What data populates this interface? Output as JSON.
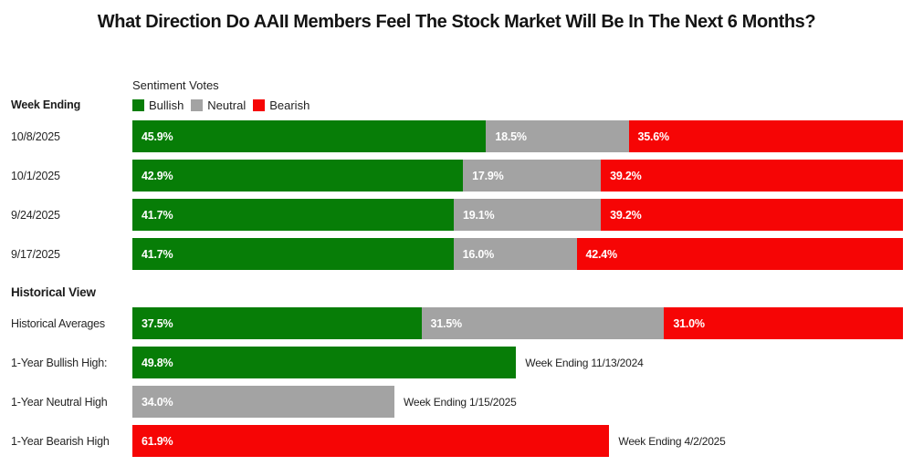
{
  "title": "What Direction Do AAII Members Feel The Stock Market Will Be In The Next 6 Months?",
  "section_labels": {
    "week_ending": "Week Ending",
    "historical_view": "Historical View"
  },
  "legend": {
    "title": "Sentiment Votes",
    "items": [
      {
        "label": "Bullish",
        "color": "#077d07"
      },
      {
        "label": "Neutral",
        "color": "#a3a3a3"
      },
      {
        "label": "Bearish",
        "color": "#f60505"
      }
    ]
  },
  "colors": {
    "bullish": "#077d07",
    "neutral": "#a3a3a3",
    "bearish": "#f60505"
  },
  "rows": [
    {
      "date": "10/8/2025",
      "segments": [
        {
          "kind": "bullish",
          "pct": 45.9,
          "label": "45.9%"
        },
        {
          "kind": "neutral",
          "pct": 18.5,
          "label": "18.5%"
        },
        {
          "kind": "bearish",
          "pct": 35.6,
          "label": "35.6%"
        }
      ]
    },
    {
      "date": "10/1/2025",
      "segments": [
        {
          "kind": "bullish",
          "pct": 42.9,
          "label": "42.9%"
        },
        {
          "kind": "neutral",
          "pct": 17.9,
          "label": "17.9%"
        },
        {
          "kind": "bearish",
          "pct": 39.2,
          "label": "39.2%"
        }
      ]
    },
    {
      "date": "9/24/2025",
      "segments": [
        {
          "kind": "bullish",
          "pct": 41.7,
          "label": "41.7%"
        },
        {
          "kind": "neutral",
          "pct": 19.1,
          "label": "19.1%"
        },
        {
          "kind": "bearish",
          "pct": 39.2,
          "label": "39.2%"
        }
      ]
    },
    {
      "date": "9/17/2025",
      "segments": [
        {
          "kind": "bullish",
          "pct": 41.7,
          "label": "41.7%"
        },
        {
          "kind": "neutral",
          "pct": 16.0,
          "label": "16.0%"
        },
        {
          "kind": "bearish",
          "pct": 42.4,
          "label": "42.4%"
        }
      ]
    }
  ],
  "averages": {
    "label": "Historical Averages",
    "segments": [
      {
        "kind": "bullish",
        "pct": 37.5,
        "label": "37.5%"
      },
      {
        "kind": "neutral",
        "pct": 31.5,
        "label": "31.5%"
      },
      {
        "kind": "bearish",
        "pct": 31.0,
        "label": "31.0%"
      }
    ]
  },
  "highs": [
    {
      "label": "1-Year Bullish High:",
      "kind": "bullish",
      "pct": 49.8,
      "value_label": "49.8%",
      "annotation": "Week Ending 11/13/2024"
    },
    {
      "label": "1-Year Neutral High",
      "kind": "neutral",
      "pct": 34.0,
      "value_label": "34.0%",
      "annotation": "Week Ending 1/15/2025"
    },
    {
      "label": "1-Year Bearish High",
      "kind": "bearish",
      "pct": 61.9,
      "value_label": "61.9%",
      "annotation": "Week Ending 4/2/2025"
    }
  ],
  "chart_data": {
    "type": "bar",
    "subtype": "horizontal-stacked",
    "title": "What Direction Do AAII Members Feel The Stock Market Will Be In The Next 6 Months?",
    "categories": [
      "10/8/2025",
      "10/1/2025",
      "9/24/2025",
      "9/17/2025",
      "Historical Averages"
    ],
    "series": [
      {
        "name": "Bullish",
        "color": "#077d07",
        "values": [
          45.9,
          42.9,
          41.7,
          41.7,
          37.5
        ]
      },
      {
        "name": "Neutral",
        "color": "#a3a3a3",
        "values": [
          18.5,
          17.9,
          19.1,
          16.0,
          31.5
        ]
      },
      {
        "name": "Bearish",
        "color": "#f60505",
        "values": [
          35.6,
          39.2,
          39.2,
          42.4,
          31.0
        ]
      }
    ],
    "annotations": [
      {
        "label": "1-Year Bullish High:",
        "series": "Bullish",
        "value": 49.8,
        "note": "Week Ending 11/13/2024"
      },
      {
        "label": "1-Year Neutral High",
        "series": "Neutral",
        "value": 34.0,
        "note": "Week Ending 1/15/2025"
      },
      {
        "label": "1-Year Bearish High",
        "series": "Bearish",
        "value": 61.9,
        "note": "Week Ending 4/2/2025"
      }
    ],
    "xlabel": "",
    "ylabel": "Week Ending",
    "xlim": [
      0,
      100
    ],
    "grid": false,
    "legend_position": "top-left-of-bars",
    "legend_title": "Sentiment Votes"
  }
}
